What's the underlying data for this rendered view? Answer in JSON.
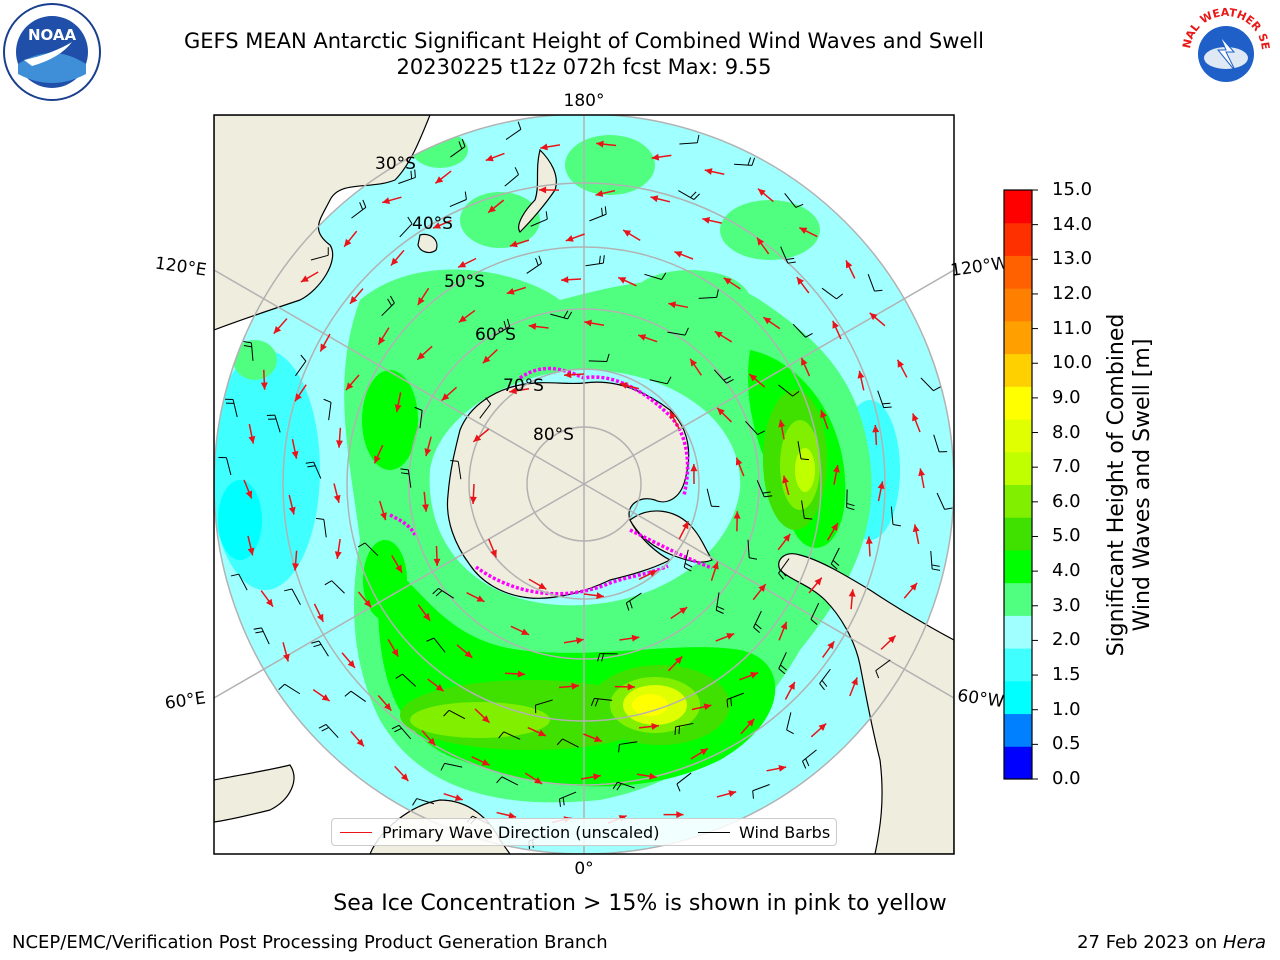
{
  "title": {
    "line1": "GEFS MEAN Antarctic Significant Height of Combined Wind Waves and Swell",
    "line2": "20230225 t12z 072h fcst   Max: 9.55"
  },
  "map": {
    "projection": "south-polar-stereographic",
    "longitude_labels": [
      "180°",
      "120°E",
      "120°W",
      "60°E",
      "60°W",
      "0°"
    ],
    "latitude_labels": [
      "30°S",
      "40°S",
      "50°S",
      "60°S",
      "70°S",
      "80°S"
    ],
    "colors": {
      "land": "#efedde",
      "ocean_outside": "#ffffff",
      "grid": "#b2b2b2",
      "wave_arrow": "#e8141a",
      "wind_barb": "#000000",
      "sea_ice": "#ff00ff"
    }
  },
  "colorbar": {
    "label_line1": "Significant Height of Combined",
    "label_line2": "Wind Waves and Swell [m]",
    "ticks": [
      "15.0",
      "14.0",
      "13.0",
      "12.0",
      "11.0",
      "10.0",
      "9.0",
      "8.0",
      "7.0",
      "6.0",
      "5.0",
      "4.0",
      "3.0",
      "2.0",
      "1.5",
      "1.0",
      "0.5",
      "0.0"
    ],
    "colors_bottom_to_top": [
      "#0000ff",
      "#0080ff",
      "#00ffff",
      "#40ffff",
      "#a0ffff",
      "#50ff80",
      "#00ff00",
      "#40e000",
      "#80f000",
      "#c0ff00",
      "#e0ff00",
      "#ffff00",
      "#ffd000",
      "#ffa000",
      "#ff8000",
      "#ff6000",
      "#ff3000",
      "#ff0000"
    ]
  },
  "legend": {
    "wave_label": "Primary Wave Direction (unscaled)",
    "wind_label": "Wind Barbs"
  },
  "notes": {
    "ice": "Sea Ice Concentration > 15% is shown in pink to yellow"
  },
  "footer": {
    "left": "NCEP/EMC/Verification Post Processing Product Generation Branch",
    "date": "27 Feb 2023 on ",
    "machine": "Hera"
  },
  "logos": {
    "noaa_text": "NOAA",
    "nws_text": "NATIONAL WEATHER SERVICE"
  }
}
